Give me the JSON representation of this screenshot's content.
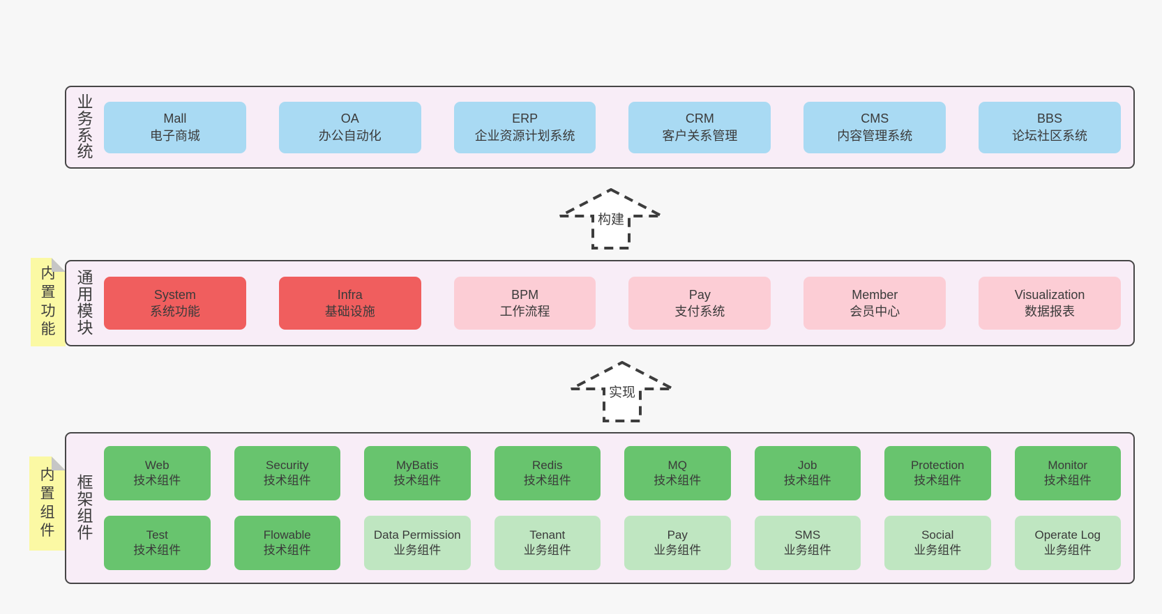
{
  "colors": {
    "page_bg": "#f7f7f7",
    "panel_bg": "#f8edf7",
    "panel_border": "#464646",
    "blue": "#a9daf3",
    "red": "#f05e5e",
    "pink": "#fccdd5",
    "green": "#68c46e",
    "green_light": "#bfe6c1",
    "note_bg": "#fbf9a4",
    "note_fold": "#c6c6c6",
    "text": "#3a3a3a"
  },
  "sections": {
    "business": {
      "label": "业务系统",
      "items": [
        {
          "name": "Mall",
          "desc": "电子商城",
          "variant": "blue"
        },
        {
          "name": "OA",
          "desc": "办公自动化",
          "variant": "blue"
        },
        {
          "name": "ERP",
          "desc": "企业资源计划系统",
          "variant": "blue"
        },
        {
          "name": "CRM",
          "desc": "客户关系管理",
          "variant": "blue"
        },
        {
          "name": "CMS",
          "desc": "内容管理系统",
          "variant": "blue"
        },
        {
          "name": "BBS",
          "desc": "论坛社区系统",
          "variant": "blue"
        }
      ]
    },
    "build_arrow": {
      "label": "构建"
    },
    "modules": {
      "note": "内置功能",
      "label": "通用模块",
      "items": [
        {
          "name": "System",
          "desc": "系统功能",
          "variant": "red"
        },
        {
          "name": "Infra",
          "desc": "基础设施",
          "variant": "red"
        },
        {
          "name": "BPM",
          "desc": "工作流程",
          "variant": "pink"
        },
        {
          "name": "Pay",
          "desc": "支付系统",
          "variant": "pink"
        },
        {
          "name": "Member",
          "desc": "会员中心",
          "variant": "pink"
        },
        {
          "name": "Visualization",
          "desc": "数据报表",
          "variant": "pink"
        }
      ]
    },
    "implement_arrow": {
      "label": "实现"
    },
    "components": {
      "note": "内置组件",
      "label": "框架组件",
      "rows": [
        [
          {
            "name": "Web",
            "desc": "技术组件",
            "variant": "green"
          },
          {
            "name": "Security",
            "desc": "技术组件",
            "variant": "green"
          },
          {
            "name": "MyBatis",
            "desc": "技术组件",
            "variant": "green"
          },
          {
            "name": "Redis",
            "desc": "技术组件",
            "variant": "green"
          },
          {
            "name": "MQ",
            "desc": "技术组件",
            "variant": "green"
          },
          {
            "name": "Job",
            "desc": "技术组件",
            "variant": "green"
          },
          {
            "name": "Protection",
            "desc": "技术组件",
            "variant": "green"
          },
          {
            "name": "Monitor",
            "desc": "技术组件",
            "variant": "green"
          }
        ],
        [
          {
            "name": "Test",
            "desc": "技术组件",
            "variant": "green"
          },
          {
            "name": "Flowable",
            "desc": "技术组件",
            "variant": "green"
          },
          {
            "name": "Data Permission",
            "desc": "业务组件",
            "variant": "green-light"
          },
          {
            "name": "Tenant",
            "desc": "业务组件",
            "variant": "green-light"
          },
          {
            "name": "Pay",
            "desc": "业务组件",
            "variant": "green-light"
          },
          {
            "name": "SMS",
            "desc": "业务组件",
            "variant": "green-light"
          },
          {
            "name": "Social",
            "desc": "业务组件",
            "variant": "green-light"
          },
          {
            "name": "Operate Log",
            "desc": "业务组件",
            "variant": "green-light"
          }
        ]
      ]
    }
  }
}
